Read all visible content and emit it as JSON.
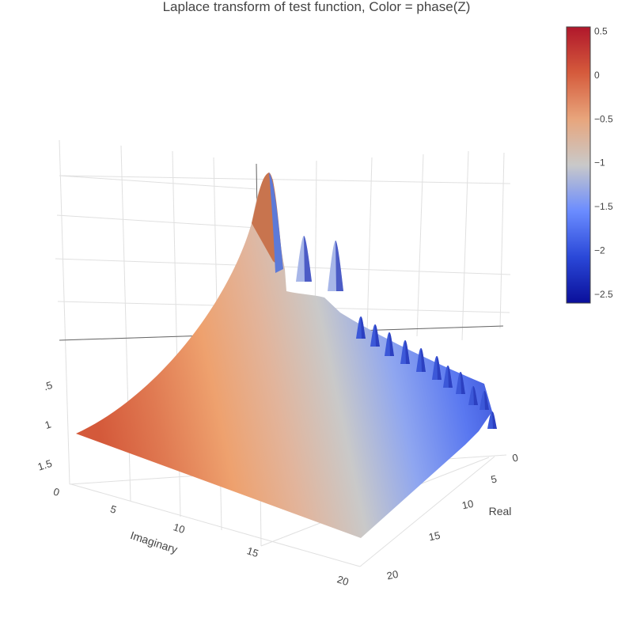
{
  "chart_data": {
    "type": "surface",
    "title": "Laplace transform of test function, Color = phase(Z)",
    "x_axis": {
      "title": "Imaginary",
      "range": [
        0,
        20
      ],
      "ticks": [
        "0",
        "5",
        "10",
        "15",
        "20"
      ]
    },
    "y_axis": {
      "title": "Real",
      "range": [
        0,
        20
      ],
      "ticks": [
        "0",
        "5",
        "10",
        "15",
        "20"
      ]
    },
    "z_axis": {
      "title": "",
      "ticks": [
        ".5",
        "1",
        "1.5",
        ""
      ]
    },
    "colorbar": {
      "range": [
        -2.6,
        0.55
      ],
      "ticks": [
        "0.5",
        "0",
        "−0.5",
        "−1",
        "−1.5",
        "−2",
        "−2.5"
      ],
      "tick_values": [
        0.5,
        0,
        -0.5,
        -1,
        -1.5,
        -2,
        -2.5
      ],
      "colorscale": [
        "#0a0f9a",
        "#2a48d8",
        "#6b8cff",
        "#c9c9c9",
        "#e8a57c",
        "#d55b3c",
        "#b0172b"
      ]
    },
    "surface_features": {
      "main_peak_imaginary": 0,
      "secondary_peaks_imaginary": [
        1,
        2,
        3,
        4,
        5,
        6,
        7,
        8,
        9,
        10,
        11,
        12,
        13,
        14,
        15,
        16,
        17,
        18,
        19,
        20
      ],
      "grid": true
    }
  }
}
